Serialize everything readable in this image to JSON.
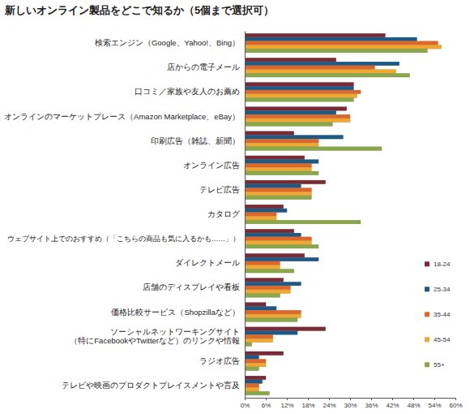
{
  "chart_data": {
    "type": "bar",
    "orientation": "horizontal",
    "title": "新しいオンライン製品をどこで知るか（5個まで選択可）",
    "categories": [
      "検索エンジン（Google、Yahoo!、Bing）",
      "店からの電子メール",
      "口コミ／家族や友人のお薦め",
      "オンラインのマーケットプレース（Amazon Marketplace、eBay）",
      "印刷広告（雑誌、新聞）",
      "オンライン広告",
      "テレビ広告",
      "カタログ",
      "ウェブサイト上でのおすすめ（「こちらの商品も気に入るかも……」）",
      "ダイレクトメール",
      "店舗のディスプレイや看板",
      "価格比較サービス（Shopzillaなど）",
      "ソーシャルネットワーキングサイト\n（特にFacebookやTwitterなど）のリンクや情報",
      "ラジオ広告",
      "テレビや映画のプロダクトプレイスメントや言及"
    ],
    "series": [
      {
        "name": "18-24",
        "color": "#7b2a35",
        "values": [
          40,
          26,
          31,
          29,
          14,
          17,
          23,
          11,
          14,
          17,
          11,
          6,
          23,
          11,
          6
        ]
      },
      {
        "name": "25-34",
        "color": "#1c5a86",
        "values": [
          49,
          44,
          31,
          26,
          28,
          21,
          16,
          12,
          16,
          21,
          16,
          9,
          15,
          4,
          5
        ]
      },
      {
        "name": "35-44",
        "color": "#e0672a",
        "values": [
          55,
          37,
          33,
          30,
          21,
          19,
          19,
          9,
          19,
          10,
          13,
          16,
          8,
          6,
          4
        ]
      },
      {
        "name": "45-54",
        "color": "#f0a830",
        "values": [
          56,
          43,
          32,
          30,
          21,
          19,
          19,
          9,
          19,
          10,
          13,
          16,
          8,
          6,
          4
        ]
      },
      {
        "name": "55+",
        "color": "#8aa84a",
        "values": [
          52,
          47,
          31,
          25,
          39,
          21,
          19,
          33,
          21,
          14,
          10,
          15,
          2,
          4,
          7
        ]
      }
    ],
    "xlim": [
      0,
      60
    ],
    "xticks": [
      {
        "value": 0,
        "label": "0%"
      },
      {
        "value": 6,
        "label": "6%"
      },
      {
        "value": 12,
        "label": "12%"
      },
      {
        "value": 18,
        "label": "18%"
      },
      {
        "value": 24,
        "label": "24%"
      },
      {
        "value": 30,
        "label": "30%"
      },
      {
        "value": 36,
        "label": "36%"
      },
      {
        "value": 42,
        "label": "42%"
      },
      {
        "value": 48,
        "label": "48%"
      },
      {
        "value": 54,
        "label": "54%"
      },
      {
        "value": 60,
        "label": "60%"
      }
    ],
    "legend": "right"
  }
}
